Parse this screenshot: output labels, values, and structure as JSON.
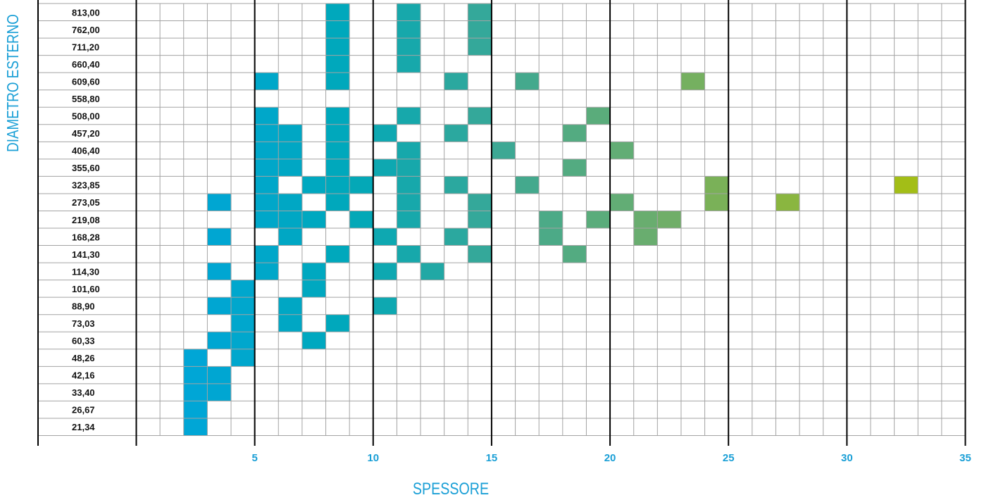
{
  "chart_data": {
    "type": "heatmap",
    "title": "",
    "xlabel": "SPESSORE",
    "ylabel": "DIAMETRO ESTERNO",
    "x_ticks": [
      5,
      10,
      15,
      20,
      25,
      30,
      35
    ],
    "xlim": [
      0,
      35
    ],
    "y_categories": [
      "813,00",
      "762,00",
      "711,20",
      "660,40",
      "609,60",
      "558,80",
      "508,00",
      "457,20",
      "406,40",
      "355,60",
      "323,85",
      "273,05",
      "219,08",
      "168,28",
      "141,30",
      "114,30",
      "101,60",
      "88,90",
      "73,03",
      "60,33",
      "48,26",
      "42,16",
      "33,40",
      "26,67",
      "21,34"
    ],
    "colors": {
      "low": "#00a6d6",
      "mid": "#1aa9a0",
      "high": "#a3be17",
      "grid": "#a3a3a3",
      "major_grid": "#000000",
      "text": "#111111",
      "axis_label": "#1a9fd6"
    },
    "filled_cells": [
      {
        "diameter": "813,00",
        "thickness": [
          9,
          12,
          15
        ]
      },
      {
        "diameter": "762,00",
        "thickness": [
          9,
          12,
          15
        ]
      },
      {
        "diameter": "711,20",
        "thickness": [
          9,
          12,
          15
        ]
      },
      {
        "diameter": "660,40",
        "thickness": [
          9,
          12
        ]
      },
      {
        "diameter": "609,60",
        "thickness": [
          6,
          9,
          14,
          17,
          24
        ]
      },
      {
        "diameter": "558,80",
        "thickness": []
      },
      {
        "diameter": "508,00",
        "thickness": [
          6,
          9,
          12,
          15,
          20
        ]
      },
      {
        "diameter": "457,20",
        "thickness": [
          6,
          7,
          9,
          11,
          14,
          19
        ]
      },
      {
        "diameter": "406,40",
        "thickness": [
          6,
          7,
          9,
          12,
          16,
          21
        ]
      },
      {
        "diameter": "355,60",
        "thickness": [
          6,
          7,
          9,
          11,
          12,
          19
        ]
      },
      {
        "diameter": "323,85",
        "thickness": [
          6,
          8,
          9,
          10,
          12,
          14,
          17,
          25,
          33
        ]
      },
      {
        "diameter": "273,05",
        "thickness": [
          4,
          6,
          7,
          9,
          12,
          15,
          21,
          25,
          28
        ]
      },
      {
        "diameter": "219,08",
        "thickness": [
          6,
          7,
          8,
          10,
          12,
          15,
          18,
          20,
          22,
          23
        ]
      },
      {
        "diameter": "168,28",
        "thickness": [
          4,
          7,
          11,
          14,
          18,
          22
        ]
      },
      {
        "diameter": "141,30",
        "thickness": [
          6,
          9,
          12,
          15,
          19
        ]
      },
      {
        "diameter": "114,30",
        "thickness": [
          4,
          6,
          8,
          11,
          13
        ]
      },
      {
        "diameter": "101,60",
        "thickness": [
          5,
          8
        ]
      },
      {
        "diameter": "88,90",
        "thickness": [
          4,
          5,
          7,
          11
        ]
      },
      {
        "diameter": "73,03",
        "thickness": [
          5,
          7,
          9
        ]
      },
      {
        "diameter": "60,33",
        "thickness": [
          4,
          5,
          8
        ]
      },
      {
        "diameter": "48,26",
        "thickness": [
          3,
          5
        ]
      },
      {
        "diameter": "42,16",
        "thickness": [
          3,
          4
        ]
      },
      {
        "diameter": "33,40",
        "thickness": [
          3,
          4
        ]
      },
      {
        "diameter": "26,67",
        "thickness": [
          3
        ]
      },
      {
        "diameter": "21,34",
        "thickness": [
          3
        ]
      }
    ]
  }
}
